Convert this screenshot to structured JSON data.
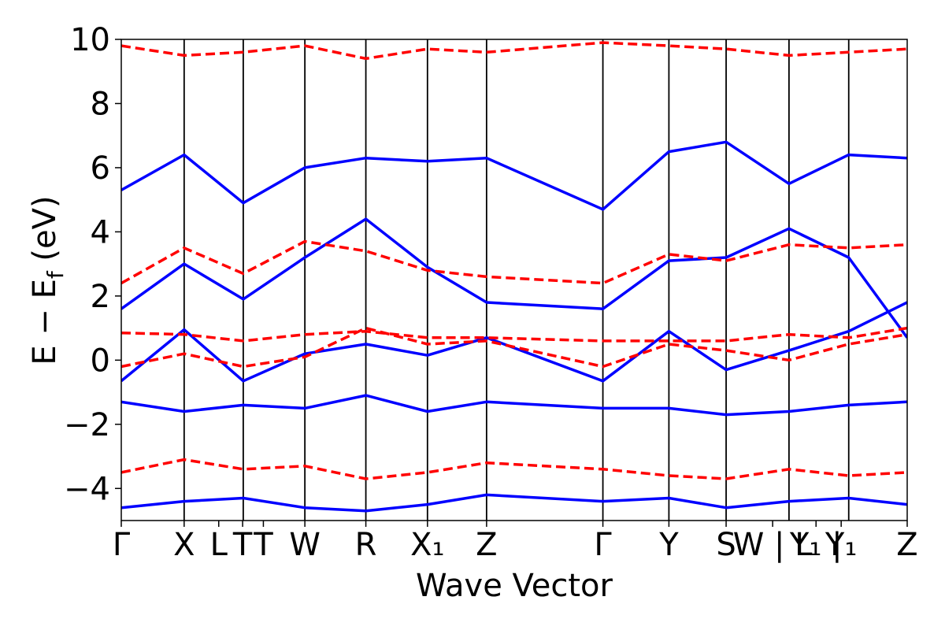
{
  "chart_data": {
    "type": "line",
    "xlabel": "Wave Vector",
    "ylabel": "E − E",
    "ylabel_sub": "f",
    "ylabel_unit": " (eV)",
    "ylim": [
      -5,
      10
    ],
    "y_ticks": [
      -4,
      -2,
      0,
      2,
      4,
      6,
      8,
      10
    ],
    "y_tick_labels": [
      "−4",
      "−2",
      "0",
      "2",
      "4",
      "6",
      "8",
      "10"
    ],
    "x_ticks": [
      {
        "label": "Γ",
        "x": 0.0
      },
      {
        "label": "X",
        "x": 1.0
      },
      {
        "label": "L",
        "x": 1.55
      },
      {
        "label": "T",
        "x": 1.93
      },
      {
        "label": "T",
        "x": 2.26
      },
      {
        "label": "W",
        "x": 2.92
      },
      {
        "label": "R",
        "x": 3.89
      },
      {
        "label": "X₁",
        "x": 4.87
      },
      {
        "label": "Z",
        "x": 5.81
      },
      {
        "label": "Γ",
        "x": 7.66
      },
      {
        "label": "Y",
        "x": 8.71
      },
      {
        "label": "S",
        "x": 9.62
      },
      {
        "label": "W | L",
        "x": 10.36
      },
      {
        "label": "Y₁ |",
        "x": 11.05
      },
      {
        "label": "Y₁",
        "x": 11.45
      },
      {
        "label": "Z",
        "x": 12.5
      }
    ],
    "vertical_lines_x": [
      1.0,
      1.94,
      2.92,
      3.89,
      4.87,
      5.81,
      7.66,
      8.71,
      9.62,
      10.62,
      11.57
    ],
    "x_range": [
      0,
      12.5
    ],
    "colors": {
      "series_solid": "#0000ff",
      "series_dashed": "#ff0000",
      "vline": "#000000"
    },
    "series": [
      {
        "style": "solid",
        "x": [
          0,
          1,
          1.94,
          2.92,
          3.89,
          4.87,
          5.81,
          7.66,
          8.71,
          9.62,
          10.62,
          11.57,
          12.5
        ],
        "bands": [
          [
            -0.65,
            0.95,
            -0.65,
            0.2,
            0.5,
            0.15,
            0.7,
            -0.65,
            0.9,
            -0.3,
            0.3,
            0.9,
            1.8
          ],
          [
            1.6,
            3.0,
            1.9,
            3.2,
            4.4,
            2.9,
            1.8,
            1.6,
            3.1,
            3.2,
            4.1,
            3.2,
            0.7
          ],
          [
            -1.3,
            -1.6,
            -1.4,
            -1.5,
            -1.1,
            -1.6,
            -1.3,
            -1.5,
            -1.5,
            -1.7,
            -1.6,
            -1.4,
            -1.3
          ],
          [
            -4.6,
            -4.4,
            -4.3,
            -4.6,
            -4.7,
            -4.5,
            -4.2,
            -4.4,
            -4.3,
            -4.6,
            -4.4,
            -4.3,
            -4.5
          ],
          [
            5.3,
            6.4,
            4.9,
            6.0,
            6.3,
            6.2,
            6.3,
            4.7,
            6.5,
            6.8,
            5.5,
            6.4,
            6.3
          ]
        ]
      },
      {
        "style": "dashed",
        "x": [
          0,
          1,
          1.94,
          2.92,
          3.89,
          4.87,
          5.81,
          7.66,
          8.71,
          9.62,
          10.62,
          11.57,
          12.5
        ],
        "bands": [
          [
            -0.2,
            0.2,
            -0.2,
            0.1,
            1.0,
            0.5,
            0.6,
            -0.2,
            0.5,
            0.3,
            0.0,
            0.5,
            0.8
          ],
          [
            0.85,
            0.8,
            0.6,
            0.8,
            0.9,
            0.7,
            0.7,
            0.6,
            0.6,
            0.6,
            0.8,
            0.7,
            1.0
          ],
          [
            2.4,
            3.5,
            2.7,
            3.7,
            3.4,
            2.8,
            2.6,
            2.4,
            3.3,
            3.1,
            3.6,
            3.5,
            3.6
          ],
          [
            -3.5,
            -3.1,
            -3.4,
            -3.3,
            -3.7,
            -3.5,
            -3.2,
            -3.4,
            -3.6,
            -3.7,
            -3.4,
            -3.6,
            -3.5
          ],
          [
            9.8,
            9.5,
            9.6,
            9.8,
            9.4,
            9.7,
            9.6,
            9.9,
            9.8,
            9.7,
            9.5,
            9.6,
            9.7
          ]
        ]
      }
    ]
  }
}
